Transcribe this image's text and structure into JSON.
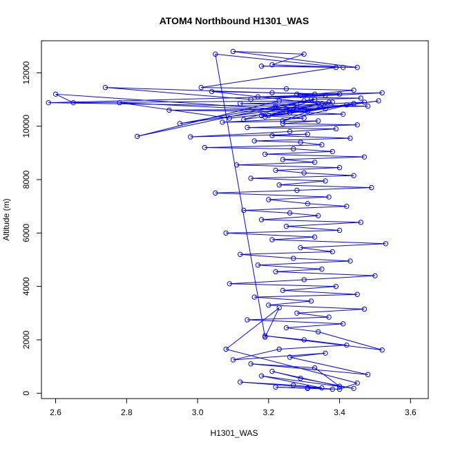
{
  "chart_data": {
    "type": "line",
    "title": "ATOM4 Northbound H1301_WAS",
    "xlabel": "H1301_WAS",
    "ylabel": "Altitude (m)",
    "xlim": [
      2.56,
      3.65
    ],
    "ylim": [
      -200,
      13200
    ],
    "xticks": [
      "2.6",
      "2.8",
      "3.0",
      "3.2",
      "3.4",
      "3.6"
    ],
    "yticks": [
      "0",
      "2000",
      "4000",
      "6000",
      "8000",
      "10000",
      "12000"
    ],
    "grid": false,
    "legend": "none",
    "series": [
      {
        "color": "#0000ff",
        "marker": "open-circle",
        "x": [
          3.31,
          3.22,
          3.38,
          3.12,
          3.27,
          3.35,
          3.18,
          3.44,
          3.29,
          3.21,
          3.4,
          3.33,
          3.15,
          3.48,
          3.26,
          3.36,
          3.1,
          3.23,
          3.42,
          3.3,
          3.19,
          3.52,
          3.34,
          3.25,
          3.41,
          3.14,
          3.37,
          3.28,
          3.47,
          3.2,
          3.32,
          3.16,
          3.45,
          3.24,
          3.39,
          3.09,
          3.3,
          3.5,
          3.22,
          3.35,
          3.17,
          3.43,
          3.27,
          3.12,
          3.38,
          3.29,
          3.53,
          3.21,
          3.33,
          3.08,
          3.4,
          3.25,
          3.46,
          3.18,
          3.34,
          3.26,
          3.13,
          3.42,
          3.31,
          3.2,
          3.37,
          3.05,
          3.28,
          3.49,
          3.23,
          3.36,
          3.15,
          3.44,
          3.3,
          3.22,
          3.4,
          3.11,
          3.33,
          3.24,
          3.47,
          3.19,
          3.38,
          3.27,
          3.02,
          3.35,
          3.29,
          3.16,
          3.43,
          3.21,
          3.31,
          2.98,
          3.26,
          3.39,
          3.14,
          3.45,
          3.24,
          3.34,
          3.07,
          3.3,
          3.18,
          3.41,
          3.25,
          2.92,
          3.36,
          3.22,
          3.48,
          3.28,
          3.12,
          3.37,
          3.23,
          2.83,
          3.32,
          3.46,
          3.17,
          3.29,
          3.4,
          3.21,
          3.04,
          3.34,
          3.26,
          3.51,
          3.19,
          3.33,
          2.95,
          3.38,
          3.24,
          3.44,
          3.13,
          3.3,
          2.65,
          2.6,
          3.27,
          3.35,
          3.2,
          3.42,
          3.09,
          2.78,
          3.31,
          3.47,
          3.22,
          2.58,
          3.36,
          3.28,
          3.52,
          3.15,
          2.74,
          3.33,
          3.44,
          3.25,
          3.01,
          3.39,
          3.18,
          3.45,
          3.1,
          3.3,
          3.21,
          3.41,
          3.05,
          3.19,
          3.23,
          3.08,
          3.45,
          3.4,
          3.31
        ],
        "y": [
          180,
          230,
          150,
          420,
          300,
          200,
          650,
          180,
          560,
          820,
          260,
          950,
          1100,
          700,
          1350,
          1500,
          1250,
          1650,
          1800,
          2000,
          2150,
          1620,
          2300,
          2450,
          2600,
          2750,
          2850,
          3000,
          3150,
          3300,
          3450,
          3600,
          3700,
          3850,
          4000,
          4100,
          4250,
          4400,
          4550,
          4650,
          4800,
          4950,
          5050,
          5200,
          5300,
          5450,
          5600,
          5750,
          5850,
          6000,
          6100,
          6250,
          6400,
          6500,
          6650,
          6750,
          6850,
          7000,
          7100,
          7250,
          7350,
          7500,
          7600,
          7700,
          7800,
          7950,
          8050,
          8150,
          8250,
          8350,
          8450,
          8550,
          8650,
          8750,
          8850,
          8950,
          9050,
          9150,
          9200,
          9300,
          9400,
          9450,
          9550,
          9650,
          9700,
          9600,
          9800,
          9900,
          9950,
          10050,
          10100,
          10200,
          10150,
          10300,
          10400,
          10450,
          10550,
          10600,
          10650,
          10700,
          10750,
          10800,
          10850,
          10900,
          10950,
          9620,
          11000,
          11050,
          11100,
          11150,
          11200,
          11250,
          11300,
          10850,
          10500,
          10950,
          10350,
          11000,
          10100,
          10900,
          10200,
          10850,
          10250,
          10950,
          10880,
          11200,
          10600,
          10850,
          10400,
          10800,
          10300,
          10880,
          10550,
          10900,
          10750,
          10880,
          11150,
          11200,
          11250,
          11000,
          11450,
          11200,
          11350,
          11400,
          11450,
          12200,
          12250,
          12200,
          12800,
          12700,
          12300,
          12200,
          12700,
          2100,
          3200,
          1650,
          380,
          150,
          200
        ]
      }
    ]
  }
}
